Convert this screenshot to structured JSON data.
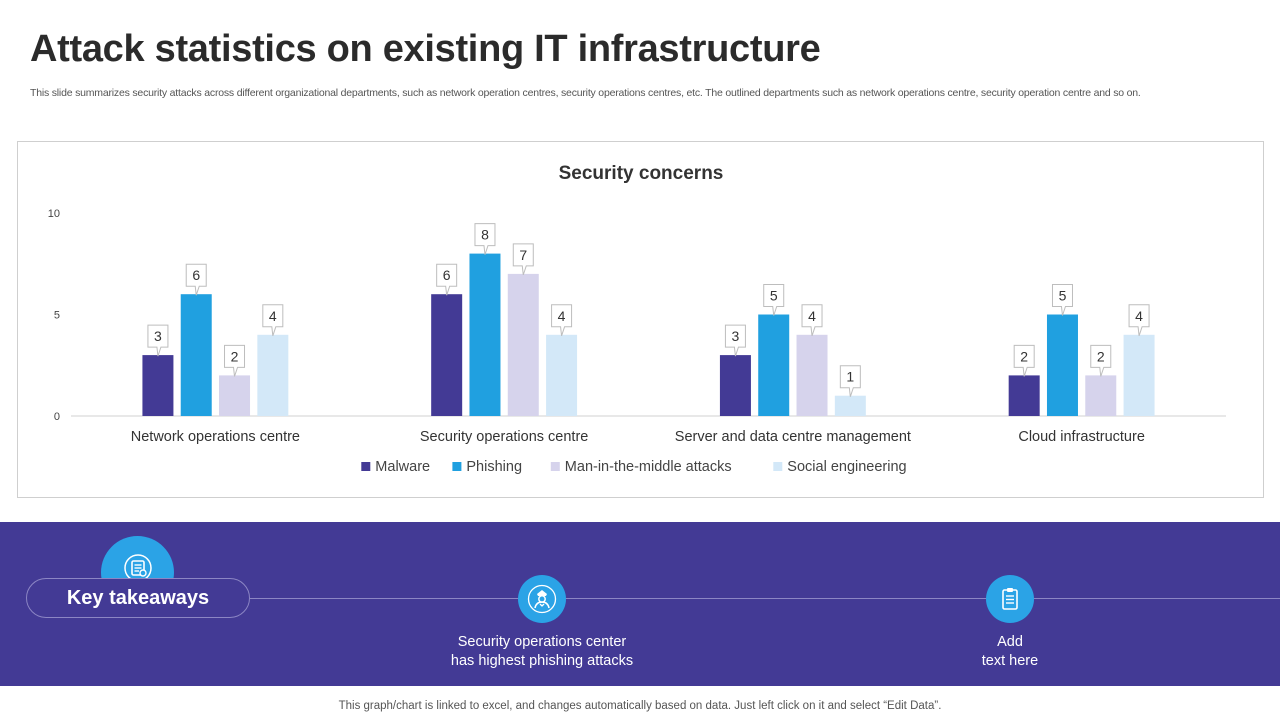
{
  "header": {
    "title": "Attack statistics on existing IT infrastructure",
    "subtitle": "This slide summarizes security attacks across different organizational departments, such as network operation centres, security operations centres, etc. The outlined departments such as network operations centre, security operation centre and so on."
  },
  "chart_data": {
    "type": "bar",
    "title": "Security concerns",
    "categories": [
      "Network operations centre",
      "Security operations centre",
      "Server and data centre management",
      "Cloud infrastructure"
    ],
    "series": [
      {
        "name": "Malware",
        "color": "#433a95",
        "values": [
          3,
          6,
          3,
          2
        ]
      },
      {
        "name": "Phishing",
        "color": "#20a0e0",
        "values": [
          6,
          8,
          5,
          5
        ]
      },
      {
        "name": "Man-in-the-middle attacks",
        "color": "#d6d3ec",
        "values": [
          2,
          7,
          4,
          2
        ]
      },
      {
        "name": "Social engineering",
        "color": "#d3e8f8",
        "values": [
          4,
          4,
          1,
          4
        ]
      }
    ],
    "ylim": [
      0,
      10
    ],
    "yticks": [
      0,
      5,
      10
    ],
    "xlabel": "",
    "ylabel": "",
    "legend": "bottom",
    "grid": false
  },
  "takeaways": {
    "label": "Key takeaways",
    "items": [
      {
        "text_line1": "Security operations center",
        "text_line2": "has highest phishing attacks",
        "icon": "security-officer-icon"
      },
      {
        "text_line1": "Add",
        "text_line2": "text here",
        "icon": "clipboard-icon"
      }
    ],
    "header_icon": "checklist-icon"
  },
  "footer": {
    "note": "This graph/chart is linked to excel, and changes automatically based on data. Just left click on it and select “Edit Data”."
  },
  "colors": {
    "band": "#433a95",
    "accent": "#2ba3e6"
  }
}
